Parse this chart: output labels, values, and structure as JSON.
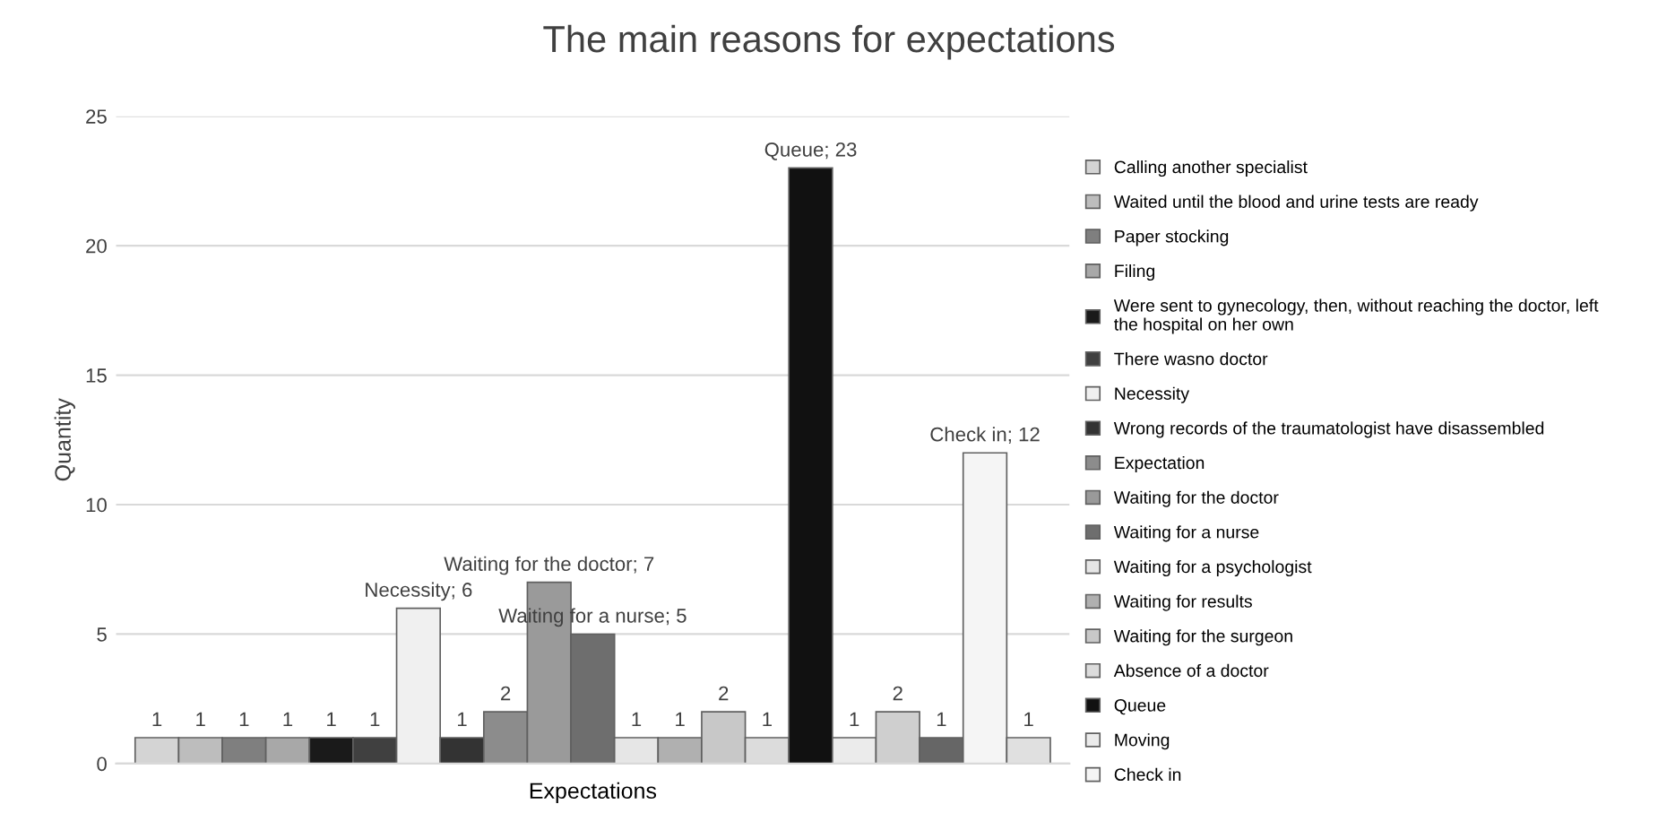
{
  "chart_data": {
    "type": "bar",
    "title": "The main reasons for expectations",
    "xlabel": "Expectations",
    "ylabel": "Quantity",
    "categories": [
      null
    ],
    "ylim": [
      0,
      25
    ],
    "yticks": [
      0,
      5,
      10,
      15,
      20,
      25
    ],
    "grid": "y",
    "legend": "right",
    "series": [
      {
        "name": "Calling another specialist",
        "color": "#d4d4d4",
        "values": [
          1
        ],
        "value_labels": [
          "1"
        ]
      },
      {
        "name": "Waited until the blood and urine tests are ready",
        "color": "#bdbdbd",
        "values": [
          1
        ],
        "value_labels": [
          "1"
        ]
      },
      {
        "name": "Paper stocking",
        "color": "#7f7f7f",
        "values": [
          1
        ],
        "value_labels": [
          "1"
        ]
      },
      {
        "name": "Filing",
        "color": "#a8a8a8",
        "values": [
          1
        ],
        "value_labels": [
          "1"
        ]
      },
      {
        "name": "Were sent to gynecology, then, without reaching the doctor, left\nthe hospital on her own",
        "color": "#1a1a1a",
        "values": [
          1
        ],
        "value_labels": [
          "1"
        ]
      },
      {
        "name": "There wasno doctor",
        "color": "#404040",
        "values": [
          1
        ],
        "value_labels": [
          "1"
        ]
      },
      {
        "name": "Necessity",
        "color": "#f0f0f0",
        "values": [
          6
        ],
        "value_labels": [
          "Necessity; 6"
        ]
      },
      {
        "name": "Wrong records of the traumatologist have disassembled",
        "color": "#333333",
        "values": [
          1
        ],
        "value_labels": [
          "1"
        ]
      },
      {
        "name": "Expectation",
        "color": "#8c8c8c",
        "values": [
          2
        ],
        "value_labels": [
          "2"
        ]
      },
      {
        "name": "Waiting for the doctor",
        "color": "#9a9a9a",
        "values": [
          7
        ],
        "value_labels": [
          "Waiting for the doctor; 7"
        ]
      },
      {
        "name": "Waiting for a nurse",
        "color": "#6e6e6e",
        "values": [
          5
        ],
        "value_labels": [
          "Waiting for a nurse; 5"
        ]
      },
      {
        "name": "Waiting for a psychologist",
        "color": "#e6e6e6",
        "values": [
          1
        ],
        "value_labels": [
          "1"
        ]
      },
      {
        "name": "Waiting for results",
        "color": "#b0b0b0",
        "values": [
          1
        ],
        "value_labels": [
          "1"
        ]
      },
      {
        "name": "Waiting for the surgeon",
        "color": "#c8c8c8",
        "values": [
          2
        ],
        "value_labels": [
          "2"
        ]
      },
      {
        "name": "Absence of a doctor",
        "color": "#dcdcdc",
        "values": [
          1
        ],
        "value_labels": [
          "1"
        ]
      },
      {
        "name": "Queue",
        "color": "#111111",
        "values": [
          23
        ],
        "value_labels": [
          "Queue; 23"
        ]
      },
      {
        "name": "Moving",
        "color": "#ebebeb",
        "values": [
          1
        ],
        "value_labels": [
          "1"
        ]
      },
      {
        "color": "#cfcfcf",
        "values": [
          2
        ],
        "value_labels": [
          "2"
        ]
      },
      {
        "color": "#666666",
        "values": [
          1
        ],
        "value_labels": [
          "1"
        ]
      },
      {
        "name": "Check in",
        "color": "#f5f5f5",
        "values": [
          12
        ],
        "value_labels": [
          "Check in; 12"
        ]
      },
      {
        "color": "#e0e0e0",
        "values": [
          1
        ],
        "value_labels": [
          "1"
        ]
      }
    ]
  }
}
